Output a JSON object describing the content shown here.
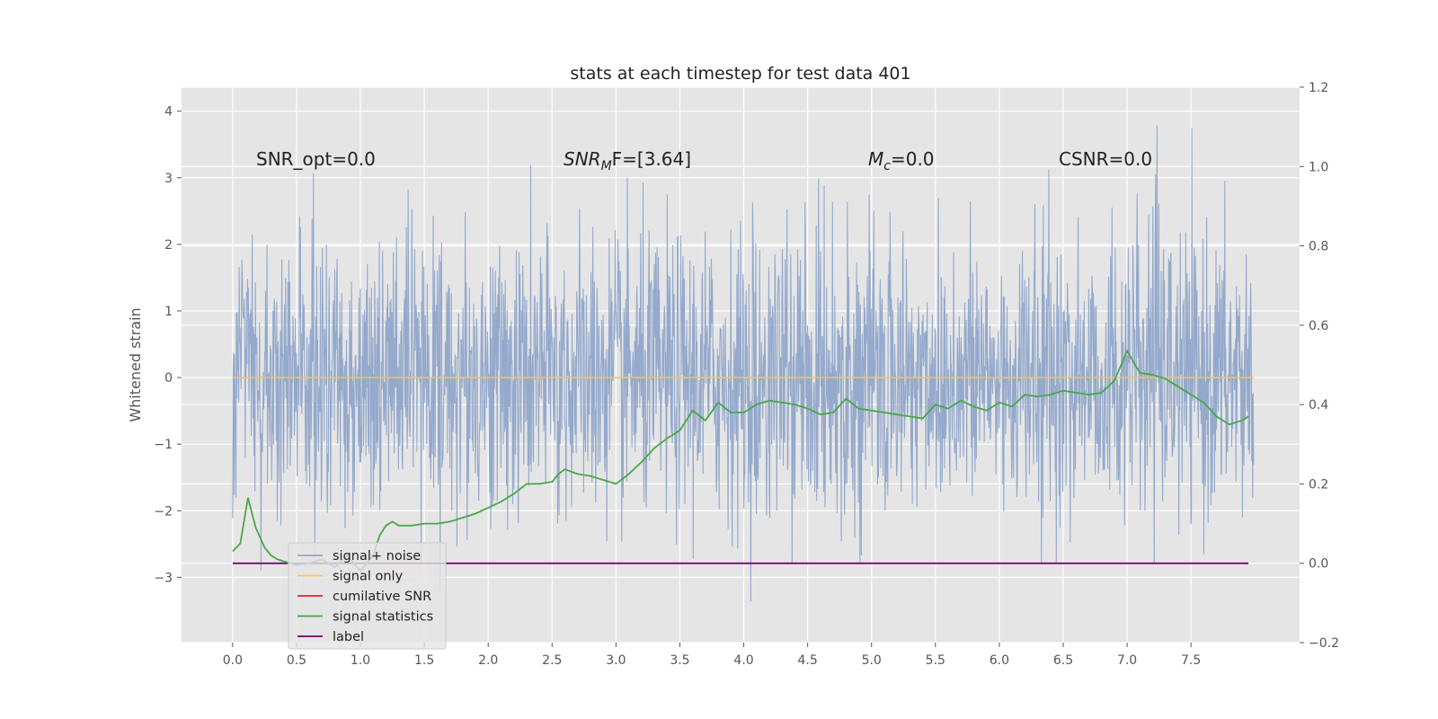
{
  "chart_data": {
    "type": "line",
    "title": "stats at each timestep for test data 401",
    "ylabel": "Whitened strain",
    "xlim": [
      -0.4,
      8.35
    ],
    "ylim": [
      -3.98,
      4.36
    ],
    "y2lim": [
      -0.2,
      1.2
    ],
    "x_ticks": [
      "0.0",
      "0.5",
      "1.0",
      "1.5",
      "2.0",
      "2.5",
      "3.0",
      "3.5",
      "4.0",
      "4.5",
      "5.0",
      "5.5",
      "6.0",
      "6.5",
      "7.0",
      "7.5"
    ],
    "y_ticks": [
      "−3",
      "−2",
      "−1",
      "0",
      "1",
      "2",
      "3",
      "4"
    ],
    "y2_ticks": [
      "−0.2",
      "0.0",
      "0.2",
      "0.4",
      "0.6",
      "0.8",
      "1.0",
      "1.2"
    ],
    "grid": true,
    "legend_position": "lower-left",
    "annotations": {
      "snr_opt": "SNR_opt=0.0",
      "snr_mf_main": "SNR",
      "snr_mf_sub": "M",
      "snr_mf_rest": "F=[3.64]",
      "mc_main": "M",
      "mc_sub": "c",
      "mc_rest": "=0.0",
      "csnr": "CSNR=0.0"
    },
    "legend": [
      {
        "name": "signal+ noise",
        "color": "#8fa5ca"
      },
      {
        "name": "signal only",
        "color": "#f2c45a"
      },
      {
        "name": "cumilative SNR",
        "color": "#d62728"
      },
      {
        "name": "signal statistics",
        "color": "#4aa54a"
      },
      {
        "name": "label",
        "color": "#6a006a"
      }
    ],
    "series": [
      {
        "name": "signal+ noise",
        "axis": "left",
        "x_range": [
          0.0,
          7.99
        ],
        "approx_envelope": [
          -3.4,
          4.0
        ],
        "color": "#8fa5ca"
      },
      {
        "name": "signal only",
        "axis": "left",
        "x": [
          0.0,
          7.99
        ],
        "y": [
          0.0,
          0.0
        ],
        "color": "#f2c45a"
      },
      {
        "name": "signal statistics",
        "axis": "right",
        "color": "#4aa54a",
        "x": [
          0.0,
          0.06,
          0.12,
          0.18,
          0.25,
          0.3,
          0.35,
          0.4,
          0.5,
          0.6,
          0.7,
          0.8,
          0.9,
          1.0,
          1.1,
          1.15,
          1.2,
          1.25,
          1.3,
          1.4,
          1.5,
          1.6,
          1.7,
          1.8,
          1.9,
          2.0,
          2.1,
          2.2,
          2.3,
          2.4,
          2.5,
          2.55,
          2.6,
          2.7,
          2.8,
          2.9,
          3.0,
          3.1,
          3.2,
          3.3,
          3.4,
          3.5,
          3.6,
          3.7,
          3.8,
          3.9,
          4.0,
          4.1,
          4.2,
          4.3,
          4.4,
          4.5,
          4.6,
          4.7,
          4.8,
          4.9,
          5.0,
          5.1,
          5.2,
          5.3,
          5.4,
          5.5,
          5.6,
          5.7,
          5.8,
          5.9,
          6.0,
          6.1,
          6.2,
          6.3,
          6.4,
          6.5,
          6.6,
          6.7,
          6.8,
          6.9,
          7.0,
          7.1,
          7.2,
          7.3,
          7.4,
          7.5,
          7.6,
          7.7,
          7.8,
          7.9,
          7.95
        ],
        "y": [
          0.03,
          0.05,
          0.165,
          0.09,
          0.04,
          0.02,
          0.01,
          0.005,
          -0.005,
          0.0,
          0.01,
          -0.01,
          0.02,
          -0.02,
          0.02,
          0.07,
          0.095,
          0.105,
          0.095,
          0.095,
          0.1,
          0.1,
          0.105,
          0.115,
          0.125,
          0.14,
          0.155,
          0.175,
          0.2,
          0.2,
          0.205,
          0.225,
          0.237,
          0.225,
          0.22,
          0.21,
          0.2,
          0.225,
          0.255,
          0.29,
          0.315,
          0.335,
          0.385,
          0.36,
          0.405,
          0.38,
          0.38,
          0.4,
          0.41,
          0.405,
          0.4,
          0.39,
          0.375,
          0.38,
          0.415,
          0.39,
          0.385,
          0.38,
          0.375,
          0.37,
          0.365,
          0.4,
          0.39,
          0.41,
          0.395,
          0.385,
          0.405,
          0.395,
          0.425,
          0.42,
          0.425,
          0.435,
          0.43,
          0.425,
          0.43,
          0.46,
          0.535,
          0.48,
          0.475,
          0.465,
          0.445,
          0.425,
          0.405,
          0.37,
          0.35,
          0.36,
          0.37
        ],
        "note": "uses right axis"
      },
      {
        "name": "label",
        "axis": "right",
        "x": [
          0.0,
          7.95
        ],
        "y": [
          0.0,
          0.0
        ],
        "color": "#6a006a"
      }
    ]
  }
}
